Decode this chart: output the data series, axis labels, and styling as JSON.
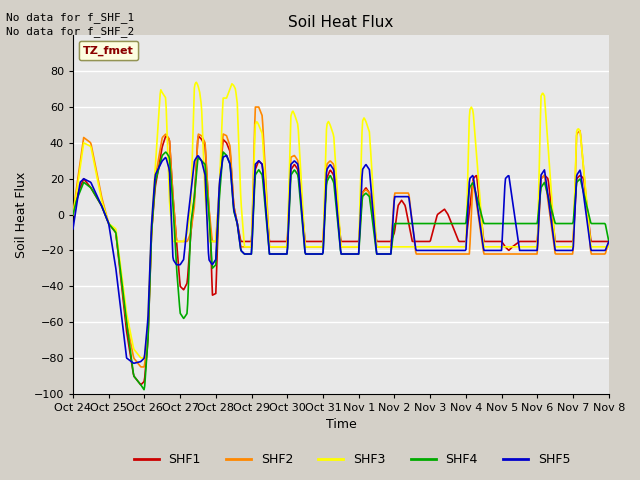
{
  "title": "Soil Heat Flux",
  "ylabel": "Soil Heat Flux",
  "xlabel": "Time",
  "ylim": [
    -100,
    100
  ],
  "yticks": [
    -100,
    -80,
    -60,
    -40,
    -20,
    0,
    20,
    40,
    60,
    80
  ],
  "fig_bg_color": "#d4d0c8",
  "plot_bg_color": "#e8e8e8",
  "grid_color": "#ffffff",
  "annotations": [
    "No data for f_SHF_1",
    "No data for f_SHF_2"
  ],
  "legend_box_label": "TZ_fmet",
  "xtick_labels": [
    "Oct 24",
    "Oct 25",
    "Oct 26",
    "Oct 27",
    "Oct 28",
    "Oct 29",
    "Oct 30",
    "Oct 31",
    "Nov 1",
    "Nov 2",
    "Nov 3",
    "Nov 4",
    "Nov 5",
    "Nov 6",
    "Nov 7",
    "Nov 8"
  ],
  "series": {
    "SHF1": {
      "color": "#cc0000",
      "linewidth": 1.2
    },
    "SHF2": {
      "color": "#ff8800",
      "linewidth": 1.2
    },
    "SHF3": {
      "color": "#ffff00",
      "linewidth": 1.2
    },
    "SHF4": {
      "color": "#00aa00",
      "linewidth": 1.2
    },
    "SHF5": {
      "color": "#0000cc",
      "linewidth": 1.2
    }
  }
}
